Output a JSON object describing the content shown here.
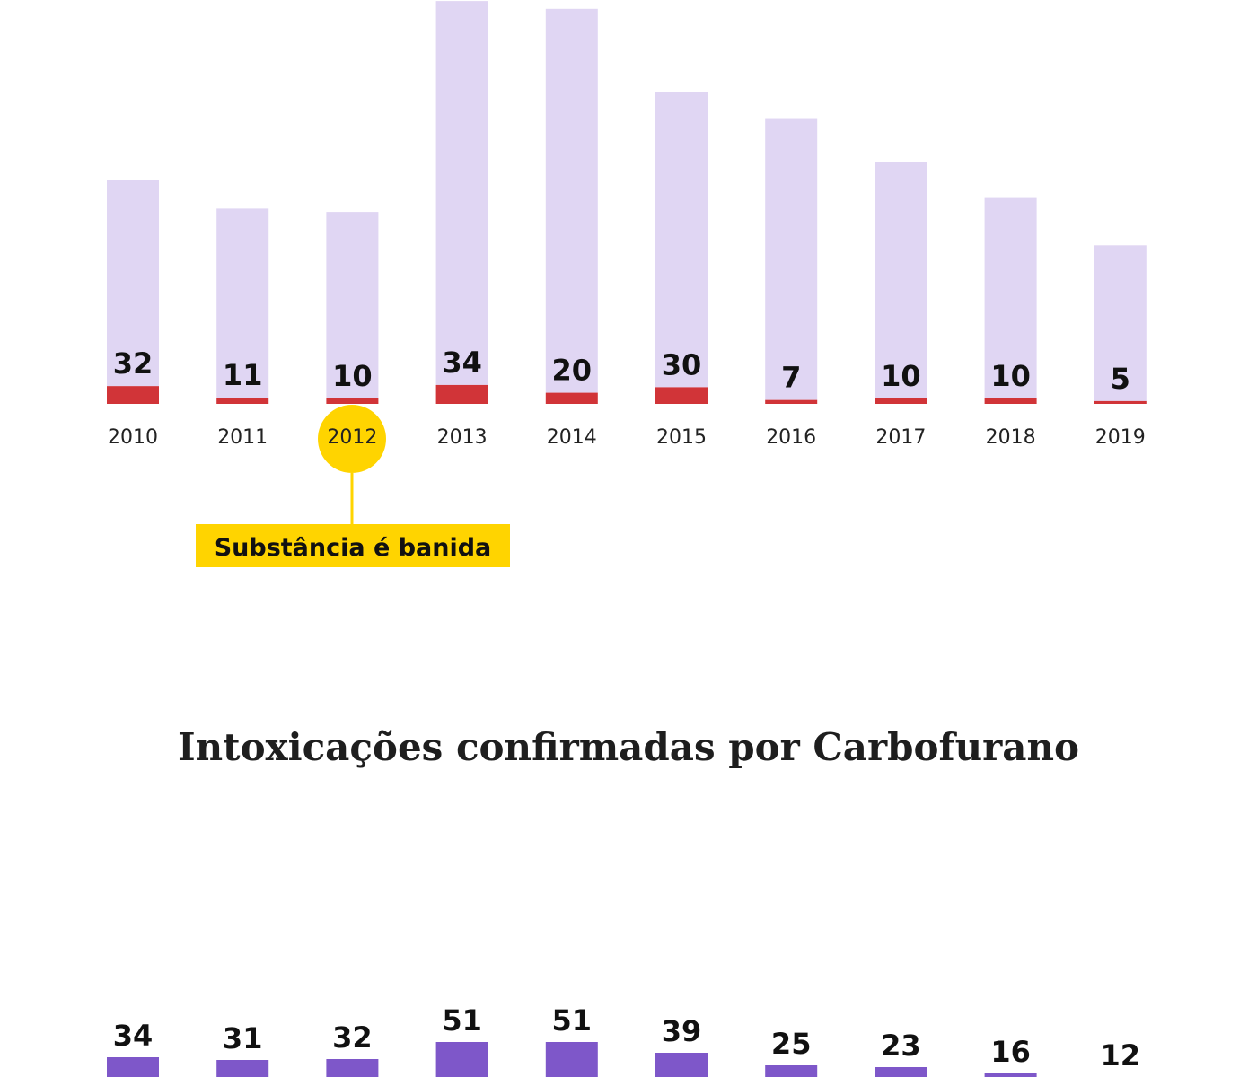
{
  "chart_data": [
    {
      "type": "bar",
      "categories": [
        "2010",
        "2011",
        "2012",
        "2013",
        "2014",
        "2015",
        "2016",
        "2017",
        "2018",
        "2019"
      ],
      "series": [
        {
          "values": [
            32,
            11,
            10,
            34,
            20,
            30,
            7,
            10,
            10,
            5
          ],
          "color": "#d13438"
        },
        {
          "values": [
            370,
            340,
            335,
            690,
            690,
            530,
            505,
            425,
            360,
            280
          ],
          "color": "#e0d6f3"
        }
      ],
      "data_labels": [
        "32",
        "11",
        "10",
        "34",
        "20",
        "30",
        "7",
        "10",
        "10",
        "5"
      ],
      "annotation": {
        "category": "2012",
        "text": "Substância é banida",
        "color": "#ffd400"
      },
      "grid": false,
      "legend": "none"
    },
    {
      "type": "bar",
      "title": "Intoxicações confirmadas por Carbofurano",
      "categories": [
        "2010",
        "2011",
        "2012",
        "2013",
        "2014",
        "2015",
        "2016",
        "2017",
        "2018",
        "2019"
      ],
      "series": [
        {
          "values": [
            34,
            31,
            32,
            51,
            51,
            39,
            25,
            23,
            16,
            12
          ],
          "color": "#7e57c9"
        }
      ],
      "grid": false,
      "legend": "none"
    }
  ]
}
